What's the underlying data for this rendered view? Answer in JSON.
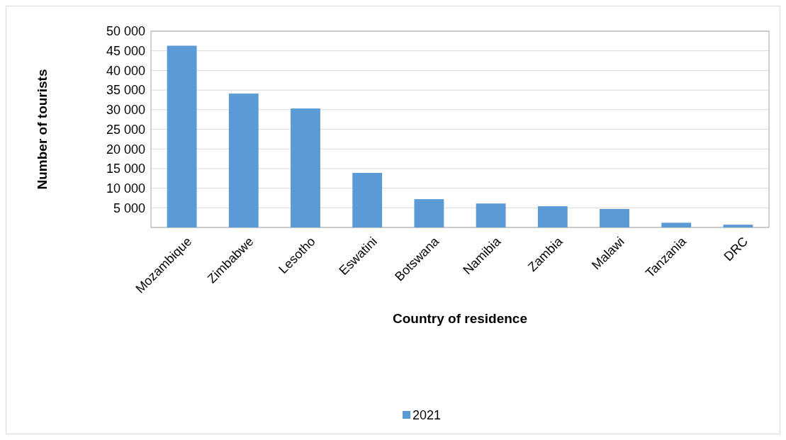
{
  "chart_data": {
    "type": "bar",
    "xlabel": "Country of residence",
    "ylabel": "Number of tourists",
    "categories": [
      "Mozambique",
      "Zimbabwe",
      "Lesotho",
      "Eswatini",
      "Botswana",
      "Namibia",
      "Zambia",
      "Malawi",
      "Tanzania",
      "DRC"
    ],
    "series": [
      {
        "name": "2021",
        "color": "#5b9bd5",
        "values": [
          46300,
          34100,
          30300,
          13900,
          7200,
          6100,
          5400,
          4700,
          1200,
          700
        ]
      }
    ],
    "ylim": [
      0,
      50000
    ],
    "yticks": [
      {
        "value": 0,
        "label": null
      },
      {
        "value": 5000,
        "label": "5 000"
      },
      {
        "value": 10000,
        "label": "10 000"
      },
      {
        "value": 15000,
        "label": "15 000"
      },
      {
        "value": 20000,
        "label": "20 000"
      },
      {
        "value": 25000,
        "label": "25 000"
      },
      {
        "value": 30000,
        "label": "30 000"
      },
      {
        "value": 35000,
        "label": "35 000"
      },
      {
        "value": 40000,
        "label": "40 000"
      },
      {
        "value": 45000,
        "label": "45 000"
      },
      {
        "value": 50000,
        "label": "50 000"
      }
    ],
    "grid": "y",
    "legend": "bottom"
  }
}
